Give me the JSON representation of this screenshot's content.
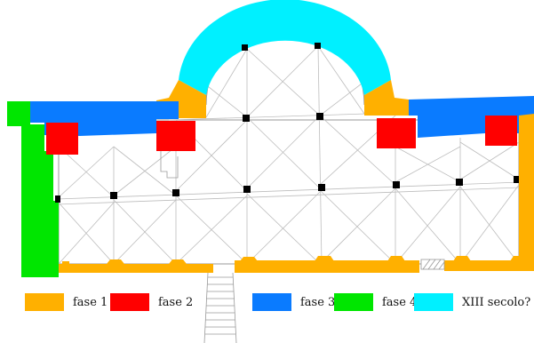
{
  "colors": {
    "fase_1": "#FFB000",
    "fase_2": "#FF0000",
    "fase_3": "#0A7BFF",
    "fase_4": "#00E600",
    "xiii_secolo": "#00F0FF",
    "wall_line": "#9a9a9a",
    "pier": "#000000"
  },
  "legend": [
    {
      "label": "fase 1",
      "color": "#FFB000"
    },
    {
      "label": "fase 2",
      "color": "#FF0000"
    },
    {
      "label": "fase 3",
      "color": "#0A7BFF"
    },
    {
      "label": "fase 4",
      "color": "#00E600"
    },
    {
      "label": "XIII secolo?",
      "color": "#00F0FF"
    }
  ]
}
